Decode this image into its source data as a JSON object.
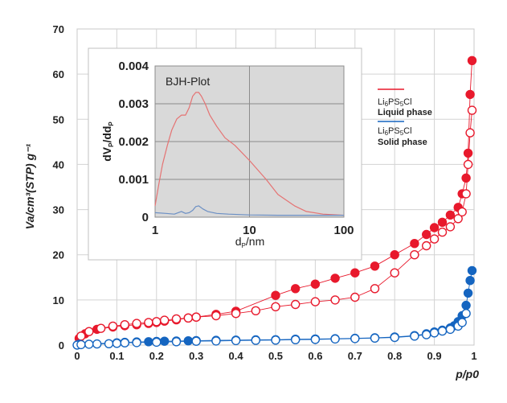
{
  "chart_data": [
    {
      "type": "scatter",
      "xlabel": "p/p0",
      "ylabel": "Va/cm³(STP) g⁻¹",
      "xlim": [
        0,
        1
      ],
      "ylim": [
        0,
        70
      ],
      "xticks": [
        "0",
        "0.1",
        "0.2",
        "0.3",
        "0.4",
        "0.5",
        "0.6",
        "0.7",
        "0.8",
        "0.9",
        "1"
      ],
      "yticks": [
        "0",
        "10",
        "20",
        "30",
        "40",
        "50",
        "60",
        "70"
      ],
      "grid": true,
      "legend_position": "right",
      "legend": [
        {
          "formula": "Li",
          "sub1": "6",
          "mid": "PS",
          "sub2": "5",
          "tail": "Cl",
          "phase": "Liquid phase",
          "color": "#e8192c"
        },
        {
          "formula": "Li",
          "sub1": "6",
          "mid": "PS",
          "sub2": "5",
          "tail": "Cl",
          "phase": "Solid phase",
          "color": "#1565c0"
        }
      ],
      "series": [
        {
          "color": "#e8192c",
          "marker": "filled",
          "x": [
            0.005,
            0.02,
            0.05,
            0.09,
            0.12,
            0.15,
            0.18,
            0.2,
            0.22,
            0.25,
            0.28,
            0.3,
            0.35,
            0.4,
            0.5,
            0.55,
            0.6,
            0.65,
            0.7,
            0.75,
            0.8,
            0.85,
            0.88,
            0.9,
            0.92,
            0.94,
            0.96,
            0.97,
            0.98,
            0.985,
            0.99,
            0.995
          ],
          "y": [
            1.5,
            2.5,
            3.5,
            4.0,
            4.3,
            4.5,
            4.8,
            5.0,
            5.3,
            5.6,
            6.0,
            6.2,
            6.8,
            7.5,
            11.0,
            12.5,
            13.5,
            14.8,
            16.0,
            17.5,
            20.0,
            22.5,
            24.5,
            26.0,
            27.2,
            28.8,
            30.5,
            33.5,
            37.0,
            42.5,
            55.5,
            63.0
          ]
        },
        {
          "color": "#e8192c",
          "marker": "open",
          "x": [
            0.01,
            0.03,
            0.06,
            0.09,
            0.12,
            0.15,
            0.18,
            0.2,
            0.22,
            0.25,
            0.28,
            0.3,
            0.35,
            0.4,
            0.45,
            0.5,
            0.55,
            0.6,
            0.65,
            0.7,
            0.75,
            0.8,
            0.85,
            0.88,
            0.9,
            0.92,
            0.94,
            0.96,
            0.97,
            0.98,
            0.985,
            0.99,
            0.995
          ],
          "y": [
            2.0,
            3.0,
            3.7,
            4.2,
            4.5,
            4.8,
            5.0,
            5.2,
            5.5,
            5.8,
            6.0,
            6.2,
            6.5,
            7.0,
            7.6,
            8.5,
            9.0,
            9.6,
            10.0,
            10.6,
            12.5,
            16.0,
            20.0,
            22.0,
            23.5,
            25.0,
            26.2,
            28.0,
            29.5,
            33.5,
            40.0,
            47.0,
            52.0
          ]
        },
        {
          "color": "#1565c0",
          "marker": "filled",
          "x": [
            0.005,
            0.1,
            0.12,
            0.15,
            0.18,
            0.2,
            0.22,
            0.25,
            0.28,
            0.3,
            0.35,
            0.4,
            0.45,
            0.5,
            0.55,
            0.6,
            0.65,
            0.7,
            0.75,
            0.8,
            0.85,
            0.88,
            0.9,
            0.92,
            0.94,
            0.95,
            0.96,
            0.97,
            0.98,
            0.985,
            0.99,
            0.995
          ],
          "y": [
            0.2,
            0.5,
            0.6,
            0.7,
            0.75,
            0.8,
            0.85,
            0.9,
            0.95,
            1.0,
            1.05,
            1.1,
            1.15,
            1.2,
            1.3,
            1.35,
            1.4,
            1.5,
            1.6,
            1.8,
            2.1,
            2.5,
            2.9,
            3.3,
            3.8,
            4.3,
            5.2,
            6.5,
            8.8,
            11.5,
            14.3,
            16.5
          ]
        },
        {
          "color": "#1565c0",
          "marker": "open",
          "x": [
            0.0,
            0.01,
            0.03,
            0.05,
            0.08,
            0.1,
            0.12,
            0.15,
            0.2,
            0.25,
            0.3,
            0.35,
            0.4,
            0.45,
            0.5,
            0.55,
            0.6,
            0.65,
            0.7,
            0.75,
            0.8,
            0.85,
            0.88,
            0.9,
            0.92,
            0.94,
            0.96,
            0.97,
            0.98
          ],
          "y": [
            0.0,
            0.1,
            0.2,
            0.25,
            0.3,
            0.4,
            0.5,
            0.55,
            0.65,
            0.75,
            0.85,
            0.9,
            1.0,
            1.05,
            1.1,
            1.2,
            1.25,
            1.35,
            1.45,
            1.55,
            1.7,
            2.0,
            2.3,
            2.7,
            3.1,
            3.5,
            4.2,
            5.0,
            7.0
          ]
        }
      ]
    },
    {
      "type": "line",
      "title": "BJH-Plot",
      "xlabel": "d",
      "xlabel_sub": "P",
      "xlabel_unit": "/nm",
      "ylabel_parts": [
        "dV",
        "P",
        "/dd",
        "P"
      ],
      "xscale": "log",
      "xlim": [
        1,
        100
      ],
      "ylim": [
        0,
        0.004
      ],
      "xticks": [
        "1",
        "10",
        "100"
      ],
      "yticks": [
        "0",
        "0.001",
        "0.002",
        "0.003",
        "0.004"
      ],
      "grid": true,
      "series": [
        {
          "color": "#e57373",
          "x": [
            1.0,
            1.1,
            1.2,
            1.35,
            1.5,
            1.7,
            1.9,
            2.1,
            2.3,
            2.5,
            2.7,
            2.9,
            3.1,
            3.4,
            3.8,
            4.5,
            5.5,
            7.0,
            10,
            15,
            20,
            30,
            40,
            60,
            100
          ],
          "y": [
            0.0003,
            0.0009,
            0.0014,
            0.0019,
            0.0023,
            0.0026,
            0.0027,
            0.0027,
            0.0029,
            0.0032,
            0.0033,
            0.0033,
            0.0032,
            0.003,
            0.0027,
            0.0024,
            0.0021,
            0.0019,
            0.0015,
            0.001,
            0.0006,
            0.0003,
            0.00015,
            8e-05,
            5e-05
          ]
        },
        {
          "color": "#6b8fc4",
          "x": [
            1.0,
            1.3,
            1.6,
            1.9,
            2.1,
            2.3,
            2.5,
            2.7,
            2.9,
            3.2,
            3.6,
            4.5,
            6,
            10,
            20,
            50,
            100
          ],
          "y": [
            0.00012,
            0.0001,
            8e-05,
            0.00015,
            0.0001,
            0.00012,
            0.00018,
            0.00028,
            0.0003,
            0.00022,
            0.00015,
            0.0001,
            8e-05,
            6e-05,
            5e-05,
            5e-05,
            5e-05
          ]
        }
      ]
    }
  ]
}
